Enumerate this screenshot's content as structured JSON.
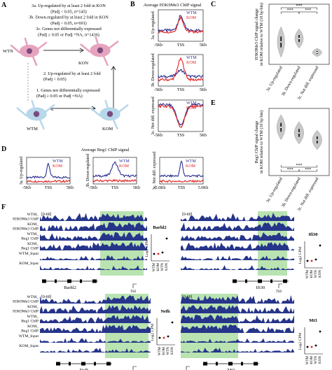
{
  "panels": [
    "A",
    "B",
    "C",
    "D",
    "E",
    "F"
  ],
  "panel_a": {
    "top_lines": [
      "3a. Up-regulated by at least 2 fold in KON",
      "(Padj < 0.05, n=145)",
      "3b. Down-regulated by at least 2 fold in KON",
      "(Padj < 0.05, n=691)",
      "3c. Genes not differentially expressed",
      "(Padj ≥ 0.05 or Padj =NA, n=1436)"
    ],
    "wtn": "WTN",
    "kon": "KON",
    "mid_lines": [
      "2. Up-regulated by at least 2 fold",
      "(Padj < 0.05)"
    ],
    "bottom_lines": [
      "1. Genes not differentially expressed",
      "(Padj ≥ 0.05 or Padj =NA)"
    ],
    "wtm": "WTM",
    "kom": "KOM"
  },
  "panel_b": {
    "title": "Average H3K9Me3 ChIP signal",
    "legend": [
      "WTM",
      "KOM"
    ],
    "rows": [
      "3a. Up-regulated",
      "3b. Down-regulated",
      "3c. Not diff. expressed"
    ],
    "x_ticks": [
      "-5Kb",
      "TSS",
      "5Kb"
    ]
  },
  "panel_c": {
    "y_label": [
      "H3K9Me3 ChIP signal change",
      "in KOM relative to WTM (10 bp bin)"
    ],
    "stars": [
      "***",
      "***",
      "***"
    ],
    "categories": [
      "3a. Up-regulated",
      "3b. Down-regulated",
      "3c. Not diff. expressed"
    ]
  },
  "panel_d": {
    "title": "Average Beg1 ChIP signal",
    "legend": [
      "WTM",
      "KOM"
    ],
    "rows": [
      "3a. Up-regulated",
      "3b. Down-regulated",
      "3c. Not diff. expressed"
    ],
    "x_ticks": [
      "-5Kb",
      "TSS",
      "5Kb"
    ],
    "x_ticks_alt": [
      "-5.0Kb",
      "TSS",
      "5.0Kb"
    ]
  },
  "panel_e": {
    "y_label": [
      "Beg1 ChIP signal change",
      "in KOM relative to WTM (10 bp bin)"
    ],
    "stars": [
      "***",
      "***",
      "***"
    ],
    "categories": [
      "3a. Up-regulated",
      "3b. Down-regulated",
      "3c. Not diff. expressed"
    ]
  },
  "panel_f": {
    "range": "[0-60]",
    "track_labels": [
      [
        "WTM_",
        "H3K9Me3 ChIP"
      ],
      [
        "KOM_",
        "H3K9Me3 ChIP"
      ],
      [
        "WTM_",
        "Beg1 ChIP"
      ],
      [
        "KOM_",
        "Beg1 ChIP"
      ],
      [
        "WTM_Input"
      ],
      [
        "KOM_Input"
      ]
    ],
    "tss": "TSS",
    "y_label": "Log2 CPM",
    "groups": [
      "WTM",
      "KOM",
      "WTN",
      "KON"
    ],
    "genes": [
      "Barhl2",
      "Ifi30",
      "Nefh",
      "Mt3"
    ]
  }
}
